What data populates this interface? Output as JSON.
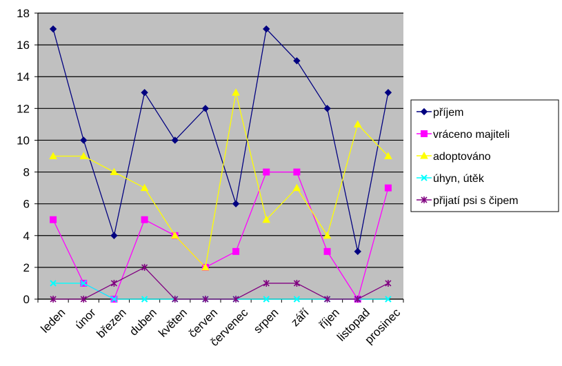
{
  "chart_data": {
    "type": "line",
    "categories": [
      "leden",
      "únor",
      "březen",
      "duben",
      "květen",
      "červen",
      "červenec",
      "srpen",
      "září",
      "říjen",
      "listopad",
      "prosinec"
    ],
    "ylim": [
      0,
      18
    ],
    "yticks": [
      "0",
      "2",
      "4",
      "6",
      "8",
      "10",
      "12",
      "14",
      "16",
      "18"
    ],
    "grid": true,
    "legend_position": "right",
    "plot_background": "#c0c0c0",
    "series": [
      {
        "name": "příjem",
        "color": "#000080",
        "marker": "diamond",
        "values": [
          17,
          10,
          4,
          13,
          10,
          12,
          6,
          17,
          15,
          12,
          3,
          13
        ]
      },
      {
        "name": "vráceno majiteli",
        "color": "#ff00ff",
        "marker": "square",
        "values": [
          5,
          1,
          0,
          5,
          4,
          2,
          3,
          8,
          8,
          3,
          0,
          7
        ]
      },
      {
        "name": "adoptováno",
        "color": "#ffff00",
        "marker": "triangle",
        "values": [
          9,
          9,
          8,
          7,
          4,
          2,
          13,
          5,
          7,
          4,
          11,
          9
        ]
      },
      {
        "name": "úhyn, útěk",
        "color": "#00ffff",
        "marker": "x",
        "values": [
          1,
          1,
          0,
          0,
          0,
          0,
          0,
          0,
          0,
          0,
          0,
          0
        ]
      },
      {
        "name": "přijatí psi s čipem",
        "color": "#800080",
        "marker": "star",
        "values": [
          0,
          0,
          1,
          2,
          0,
          0,
          0,
          1,
          1,
          0,
          0,
          1
        ]
      }
    ]
  }
}
